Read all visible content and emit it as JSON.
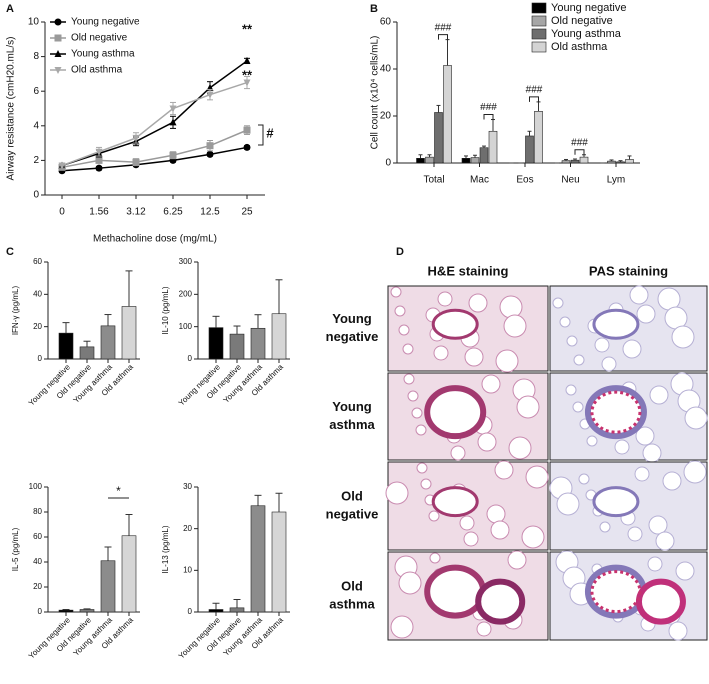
{
  "chart_data": [
    {
      "type": "line",
      "label": "A",
      "x_label": "Methacholine dose (mg/mL)",
      "y_label": "Airway resistance (cmH20.mL/s)",
      "categories": [
        "0",
        "1.56",
        "3.12",
        "6.25",
        "12.5",
        "25"
      ],
      "ylim": [
        0,
        10
      ],
      "yticks": [
        0,
        2,
        4,
        6,
        8,
        10
      ],
      "legend": "upper left",
      "series": [
        {
          "name": "Young negative",
          "color": "#000000",
          "marker": "circle",
          "values": [
            1.4,
            1.55,
            1.75,
            2.0,
            2.35,
            2.75
          ],
          "errors": [
            0.1,
            0.1,
            0.1,
            0.1,
            0.1,
            0.1
          ]
        },
        {
          "name": "Old negative",
          "color": "#9a9a9a",
          "marker": "square",
          "values": [
            1.6,
            2.0,
            1.9,
            2.3,
            2.85,
            3.75
          ],
          "errors": [
            0.15,
            0.15,
            0.2,
            0.2,
            0.3,
            0.25
          ]
        },
        {
          "name": "Young asthma",
          "color": "#000000",
          "marker": "triangle",
          "values": [
            1.7,
            2.4,
            3.1,
            4.2,
            6.2,
            7.75
          ],
          "errors": [
            0.15,
            0.2,
            0.25,
            0.35,
            0.35,
            0.15
          ]
        },
        {
          "name": "Old asthma",
          "color": "#a8a8a8",
          "marker": "triangle-down",
          "values": [
            1.7,
            2.5,
            3.3,
            5.0,
            5.8,
            6.5
          ],
          "errors": [
            0.15,
            0.25,
            0.3,
            0.35,
            0.3,
            0.35
          ]
        }
      ],
      "annotations": [
        "**",
        "**",
        "#"
      ]
    },
    {
      "type": "bar",
      "label": "B",
      "y_label": "Cell count (x10⁴ cells/mL)",
      "categories": [
        "Total",
        "Mac",
        "Eos",
        "Neu",
        "Lym"
      ],
      "ylim": [
        0,
        60
      ],
      "yticks": [
        0,
        20,
        40,
        60
      ],
      "legend": "upper right",
      "series": [
        {
          "name": "Young negative",
          "color": "#000000",
          "values": [
            2,
            2,
            0,
            0,
            0
          ],
          "errors": [
            1.5,
            1,
            0,
            0,
            0
          ]
        },
        {
          "name": "Old negative",
          "color": "#a6a6a6",
          "values": [
            2.5,
            2.3,
            0,
            1.0,
            0.8
          ],
          "errors": [
            1,
            1,
            0,
            0.5,
            0.5
          ]
        },
        {
          "name": "Young asthma",
          "color": "#6e6e6e",
          "values": [
            21.5,
            6.5,
            11.5,
            1.2,
            0.5
          ],
          "errors": [
            3,
            0.7,
            2,
            0.5,
            0.5
          ]
        },
        {
          "name": "Old asthma",
          "color": "#d4d4d4",
          "values": [
            41.5,
            13.5,
            22,
            2.5,
            1.5
          ],
          "errors": [
            11,
            5,
            4,
            1,
            1.5
          ]
        }
      ],
      "annotations": [
        "###",
        "###",
        "###",
        "###"
      ]
    },
    {
      "type": "bar",
      "label": "C",
      "y_label": "IFN-γ (pg/mL)",
      "categories": [
        "Young negative",
        "Old negative",
        "Young asthma",
        "Old asthma"
      ],
      "colors": [
        "#000000",
        "#7a7a7a",
        "#8c8c8c",
        "#d6d6d6"
      ],
      "values": [
        16,
        7.5,
        20.5,
        32.5
      ],
      "errors": [
        6.5,
        3.5,
        7,
        22
      ],
      "ylim": [
        0,
        60
      ],
      "yticks": [
        0,
        20,
        40,
        60
      ]
    },
    {
      "type": "bar",
      "y_label": "IL-10 (pg/mL)",
      "categories": [
        "Young negative",
        "Old negative",
        "Young asthma",
        "Old asthma"
      ],
      "colors": [
        "#000000",
        "#7a7a7a",
        "#8c8c8c",
        "#d6d6d6"
      ],
      "values": [
        97,
        77,
        95,
        140
      ],
      "errors": [
        35,
        25,
        42,
        105
      ],
      "ylim": [
        0,
        300
      ],
      "yticks": [
        0,
        100,
        200,
        300
      ]
    },
    {
      "type": "bar",
      "y_label": "IL-5 (pg/mL)",
      "categories": [
        "Young negative",
        "Old negative",
        "Young asthma",
        "Old asthma"
      ],
      "colors": [
        "#000000",
        "#7a7a7a",
        "#8c8c8c",
        "#d6d6d6"
      ],
      "values": [
        1.5,
        2,
        41,
        61
      ],
      "errors": [
        0.5,
        0.5,
        11,
        17
      ],
      "ylim": [
        0,
        100
      ],
      "yticks": [
        0,
        20,
        40,
        60,
        80,
        100
      ],
      "annotations": [
        "*"
      ]
    },
    {
      "type": "bar",
      "y_label": "IL-13 (pg/mL)",
      "categories": [
        "Young negative",
        "Old negative",
        "Young asthma",
        "Old asthma"
      ],
      "colors": [
        "#000000",
        "#7a7a7a",
        "#8c8c8c",
        "#d6d6d6"
      ],
      "values": [
        0.6,
        1,
        25.5,
        24
      ],
      "errors": [
        1.5,
        2,
        2.5,
        4.5
      ],
      "ylim": [
        0,
        30
      ],
      "yticks": [
        0,
        10,
        20,
        30
      ]
    }
  ],
  "panel_d": {
    "label": "D",
    "columns": [
      "H&E staining",
      "PAS staining"
    ],
    "rows": [
      [
        "Young",
        "negative"
      ],
      [
        "Young",
        "asthma"
      ],
      [
        "Old",
        "negative"
      ],
      [
        "Old",
        "asthma"
      ]
    ]
  }
}
